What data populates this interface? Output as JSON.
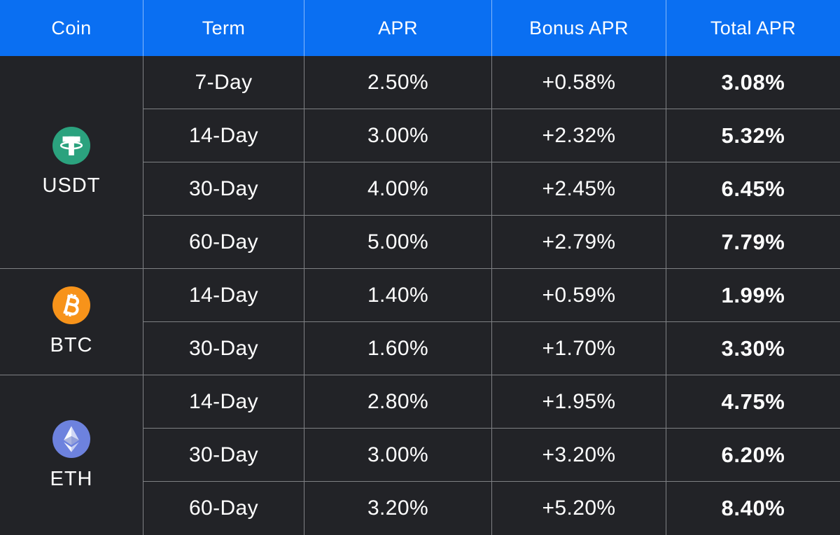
{
  "colors": {
    "header_bg": "#0a6ff2",
    "table_bg": "#222327",
    "grid_line": "#7f8184",
    "text": "#ffffff",
    "tether_green": "#2ba27e",
    "bitcoin_orange": "#f7931a",
    "ethereum_blue": "#6d82de"
  },
  "table": {
    "columns": [
      "Coin",
      "Term",
      "APR",
      "Bonus APR",
      "Total APR"
    ],
    "groups": [
      {
        "coin": "USDT",
        "icon": "tether-icon",
        "rows": [
          {
            "term": "7-Day",
            "apr": "2.50%",
            "bonus": "+0.58%",
            "total": "3.08%"
          },
          {
            "term": "14-Day",
            "apr": "3.00%",
            "bonus": "+2.32%",
            "total": "5.32%"
          },
          {
            "term": "30-Day",
            "apr": "4.00%",
            "bonus": "+2.45%",
            "total": "6.45%"
          },
          {
            "term": "60-Day",
            "apr": "5.00%",
            "bonus": "+2.79%",
            "total": "7.79%"
          }
        ]
      },
      {
        "coin": "BTC",
        "icon": "bitcoin-icon",
        "rows": [
          {
            "term": "14-Day",
            "apr": "1.40%",
            "bonus": "+0.59%",
            "total": "1.99%"
          },
          {
            "term": "30-Day",
            "apr": "1.60%",
            "bonus": "+1.70%",
            "total": "3.30%"
          }
        ]
      },
      {
        "coin": "ETH",
        "icon": "ethereum-icon",
        "rows": [
          {
            "term": "14-Day",
            "apr": "2.80%",
            "bonus": "+1.95%",
            "total": "4.75%"
          },
          {
            "term": "30-Day",
            "apr": "3.00%",
            "bonus": "+3.20%",
            "total": "6.20%"
          },
          {
            "term": "60-Day",
            "apr": "3.20%",
            "bonus": "+5.20%",
            "total": "8.40%"
          }
        ]
      }
    ]
  },
  "chart_data": {
    "type": "table",
    "columns": [
      "Coin",
      "Term",
      "APR",
      "Bonus APR",
      "Total APR"
    ],
    "rows": [
      [
        "USDT",
        "7-Day",
        "2.50%",
        "+0.58%",
        "3.08%"
      ],
      [
        "USDT",
        "14-Day",
        "3.00%",
        "+2.32%",
        "5.32%"
      ],
      [
        "USDT",
        "30-Day",
        "4.00%",
        "+2.45%",
        "6.45%"
      ],
      [
        "USDT",
        "60-Day",
        "5.00%",
        "+2.79%",
        "7.79%"
      ],
      [
        "BTC",
        "14-Day",
        "1.40%",
        "+0.59%",
        "1.99%"
      ],
      [
        "BTC",
        "30-Day",
        "1.60%",
        "+1.70%",
        "3.30%"
      ],
      [
        "ETH",
        "14-Day",
        "2.80%",
        "+1.95%",
        "4.75%"
      ],
      [
        "ETH",
        "30-Day",
        "3.00%",
        "+3.20%",
        "6.20%"
      ],
      [
        "ETH",
        "60-Day",
        "3.20%",
        "+5.20%",
        "8.40%"
      ]
    ]
  }
}
